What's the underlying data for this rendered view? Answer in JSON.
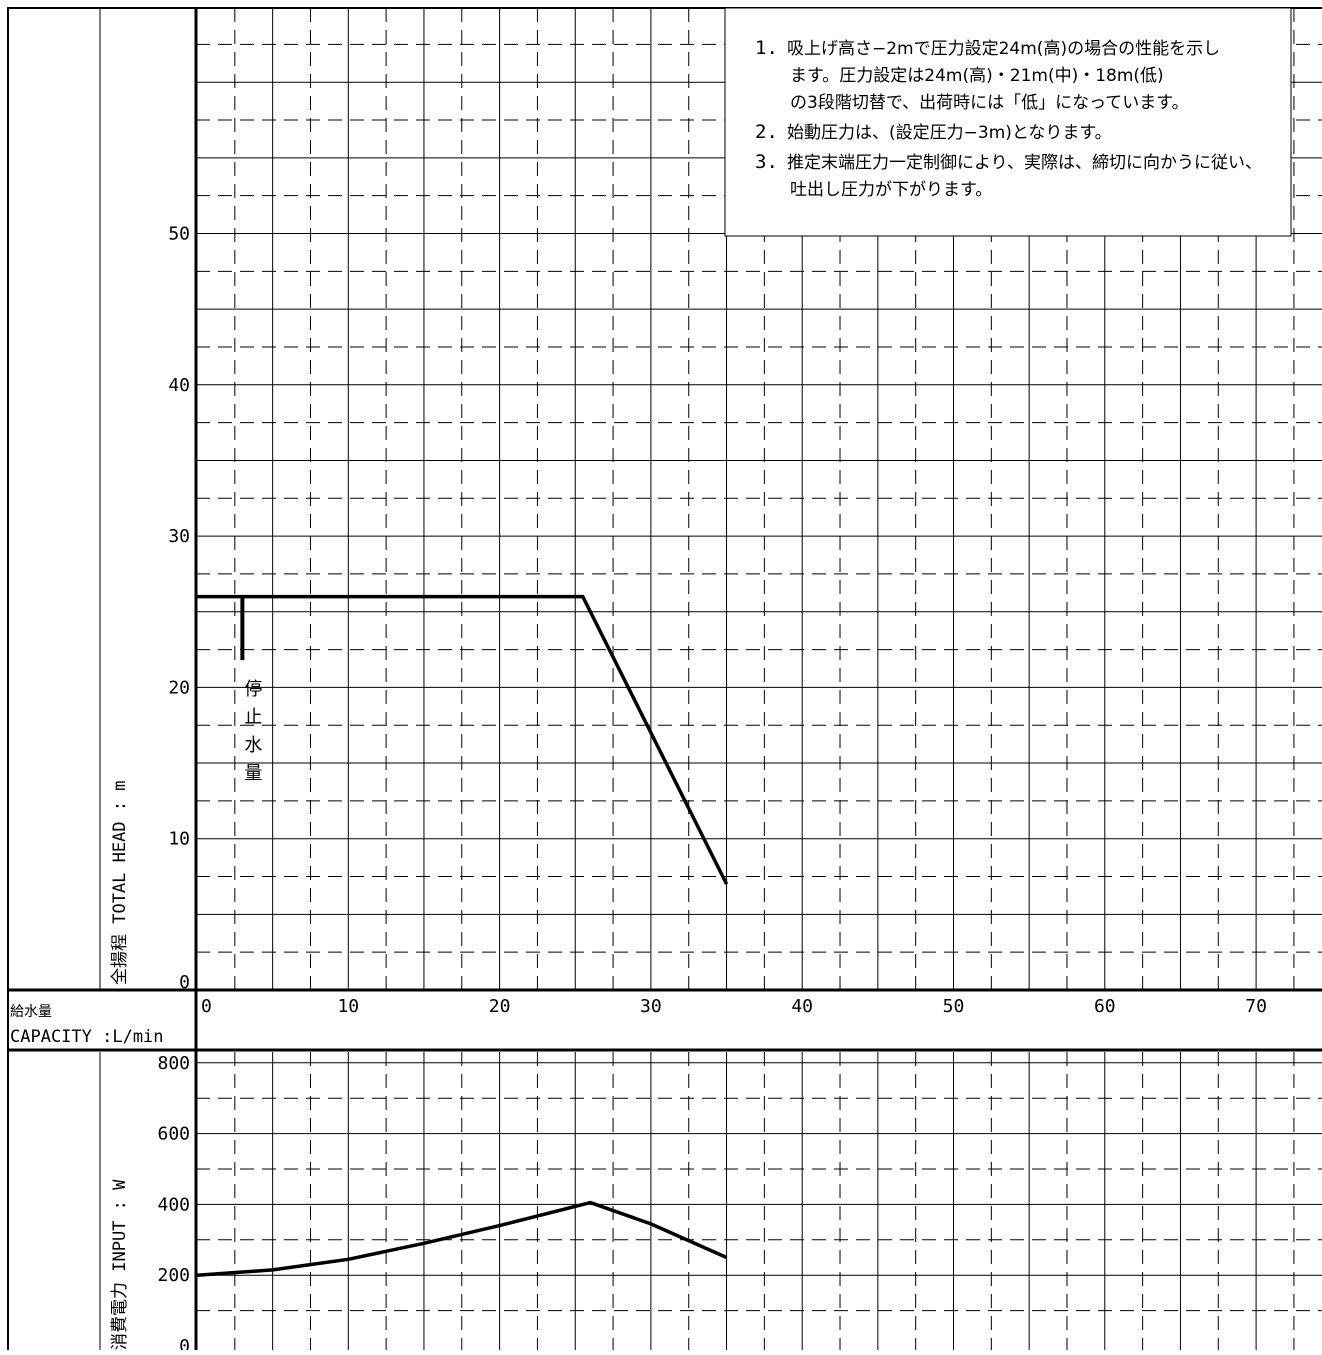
{
  "chart_data": [
    {
      "type": "line",
      "ylabel": "全揚程 TOTAL HEAD : m",
      "ylim": [
        0,
        65
      ],
      "yticks": [
        0,
        10,
        20,
        30,
        40,
        50
      ],
      "xlim": [
        0,
        75
      ],
      "grid": true,
      "series": [
        {
          "x": [
            0,
            25.5,
            35
          ],
          "y": [
            26,
            26,
            7
          ]
        }
      ],
      "annotations": [
        {
          "text": "停止水量",
          "x": 3,
          "y_top": 26,
          "y_bottom": 21.8
        }
      ],
      "notes": [
        {
          "num": "1.",
          "lines": [
            "吸上げ高さ−2mで圧力設定24m(高)の場合の性能を示し",
            "ます。圧力設定は24m(高)・21m(中)・18m(低)",
            "の3段階切替で、出荷時には「低」になっています。"
          ]
        },
        {
          "num": "2.",
          "lines": [
            "始動圧力は、(設定圧力−3m)となります。"
          ]
        },
        {
          "num": "3.",
          "lines": [
            "推定末端圧力一定制御により、実際は、締切に向かうに従い、",
            "吐出し圧力が下がります。"
          ]
        }
      ]
    },
    {
      "type": "line",
      "ylabel": "消費電力 INPUT : W",
      "ylim": [
        0,
        800
      ],
      "yticks": [
        0,
        200,
        400,
        600,
        800
      ],
      "xlim": [
        0,
        75
      ],
      "grid": true,
      "series": [
        {
          "x": [
            0,
            5,
            10,
            15,
            20,
            26,
            30,
            35
          ],
          "y": [
            200,
            215,
            245,
            290,
            340,
            405,
            345,
            250
          ]
        }
      ]
    }
  ],
  "x_axis": {
    "label_jp": "給水量",
    "label_en": "CAPACITY :L/min",
    "ticks": [
      0,
      10,
      20,
      30,
      40,
      50,
      60,
      70
    ]
  }
}
